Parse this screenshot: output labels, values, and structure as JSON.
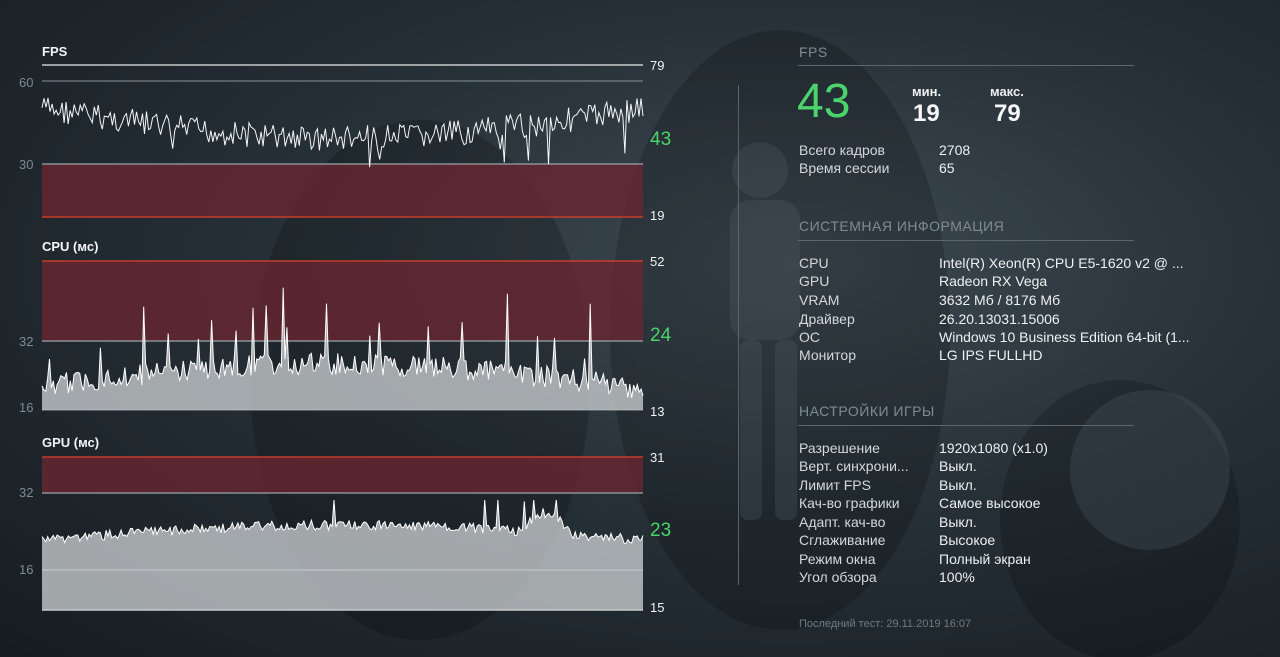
{
  "fps_graph": {
    "title": "FPS",
    "axis_top": "60",
    "axis_mid": "30",
    "max": "79",
    "current": "43",
    "min": "19"
  },
  "cpu_graph": {
    "title": "CPU (мс)",
    "axis_mid": "32",
    "axis_low": "16",
    "max": "52",
    "current": "24",
    "min": "13"
  },
  "gpu_graph": {
    "title": "GPU (мс)",
    "axis_mid": "32",
    "axis_low": "16",
    "max": "31",
    "current": "23",
    "min": "15"
  },
  "fps_panel": {
    "title": "FPS",
    "current": "43",
    "min_label": "мин.",
    "min_value": "19",
    "max_label": "макс.",
    "max_value": "79",
    "rows": [
      {
        "key": "Всего кадров",
        "value": "2708"
      },
      {
        "key": "Время сессии",
        "value": "65"
      }
    ]
  },
  "system_info": {
    "title": "СИСТЕМНАЯ ИНФОРМАЦИЯ",
    "rows": [
      {
        "key": "CPU",
        "value": "Intel(R) Xeon(R) CPU E5-1620 v2 @ ..."
      },
      {
        "key": "GPU",
        "value": "Radeon RX Vega"
      },
      {
        "key": "VRAM",
        "value": "3632 Мб / 8176 Мб"
      },
      {
        "key": "Драйвер",
        "value": "26.20.13031.15006"
      },
      {
        "key": "ОС",
        "value": "Windows 10 Business Edition 64-bit (1..."
      },
      {
        "key": "Монитор",
        "value": "LG IPS FULLHD"
      }
    ]
  },
  "game_settings": {
    "title": "НАСТРОЙКИ ИГРЫ",
    "rows": [
      {
        "key": "Разрешение",
        "value": "1920x1080 (x1.0)"
      },
      {
        "key": "Верт. синхрони...",
        "value": "Выкл."
      },
      {
        "key": "Лимит FPS",
        "value": "Выкл."
      },
      {
        "key": "Кач-во графики",
        "value": "Самое высокое"
      },
      {
        "key": "Адапт. кач-во",
        "value": "Выкл."
      },
      {
        "key": "Сглаживание",
        "value": "Высокое"
      },
      {
        "key": "Режим окна",
        "value": "Полный экран"
      },
      {
        "key": "Угол обзора",
        "value": "100%"
      }
    ]
  },
  "footer": "Последний тест: 29.11.2019 16:07",
  "colors": {
    "accent_green": "#4bd46b",
    "danger_red": "#e0402a",
    "danger_zone": "#6e2530"
  }
}
